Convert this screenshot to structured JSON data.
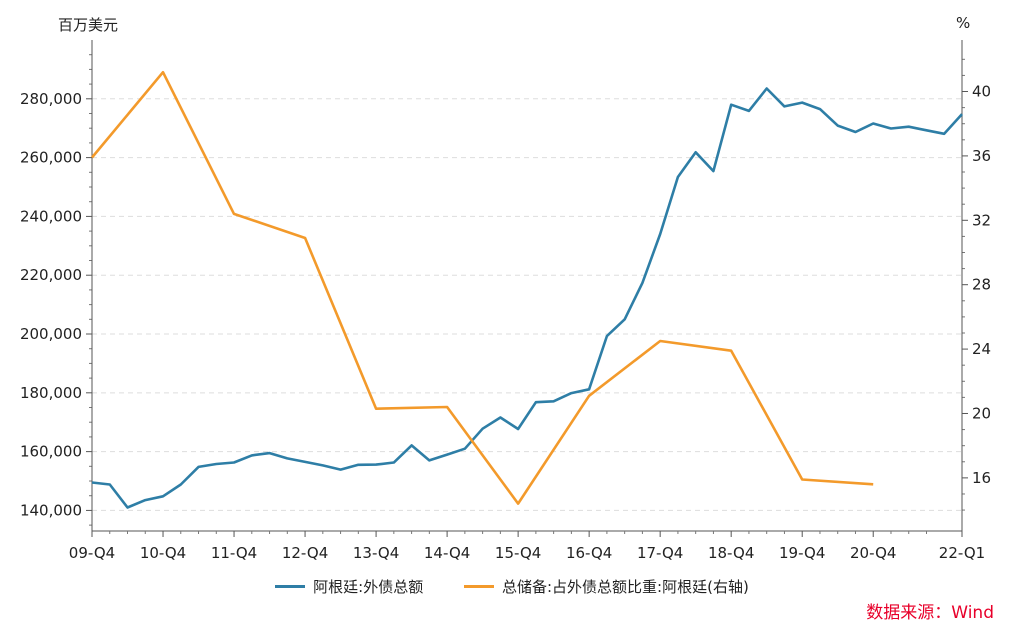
{
  "chart_data": {
    "type": "line",
    "y_left_unit": "百万美元",
    "y_right_unit": "%",
    "x_ticks": [
      "09-Q4",
      "10-Q4",
      "11-Q4",
      "12-Q4",
      "13-Q4",
      "14-Q4",
      "15-Q4",
      "16-Q4",
      "17-Q4",
      "18-Q4",
      "19-Q4",
      "20-Q4",
      "22-Q1"
    ],
    "y_left_ticks": [
      140000,
      160000,
      180000,
      200000,
      220000,
      240000,
      260000,
      280000
    ],
    "y_left_tick_labels": [
      "140,000",
      "160,000",
      "180,000",
      "200,000",
      "220,000",
      "240,000",
      "260,000",
      "280,000"
    ],
    "y_right_ticks": [
      16,
      20,
      24,
      28,
      32,
      36,
      40
    ],
    "y_left_lim": [
      133000,
      300000
    ],
    "y_right_lim": [
      12.7,
      43.2
    ],
    "x_lim": [
      0,
      49
    ],
    "grid": true,
    "legend_position": "bottom-center",
    "series": [
      {
        "name": "阿根廷:外债总额",
        "color": "#2e7ea6",
        "axis": "left",
        "x": [
          0,
          1,
          2,
          3,
          4,
          5,
          6,
          7,
          8,
          9,
          10,
          11,
          12,
          13,
          14,
          15,
          16,
          17,
          18,
          19,
          20,
          21,
          22,
          23,
          24,
          25,
          26,
          27,
          28,
          29,
          30,
          31,
          32,
          33,
          34,
          35,
          36,
          37,
          38,
          39,
          40,
          41,
          42,
          43,
          44,
          45,
          46,
          47,
          48,
          49
        ],
        "values": [
          149500,
          148800,
          141000,
          143500,
          144800,
          148800,
          154800,
          155800,
          156300,
          158700,
          159500,
          157700,
          156500,
          155300,
          153900,
          155500,
          155600,
          156300,
          162100,
          157000,
          159000,
          161000,
          167800,
          171600,
          167700,
          176800,
          177100,
          179900,
          181200,
          199300,
          205000,
          217400,
          234000,
          253400,
          261800,
          255400,
          278000,
          275900,
          283500,
          277400,
          278700,
          276500,
          270900,
          268700,
          271600,
          269900,
          270500,
          269300,
          268100,
          274800
        ]
      },
      {
        "name": "总储备:占外债总额比重:阿根廷(右轴)",
        "color": "#f39a2b",
        "axis": "right",
        "x": [
          0,
          4,
          8,
          12,
          16,
          20,
          24,
          28,
          32,
          36,
          40,
          44
        ],
        "values": [
          35.9,
          41.2,
          32.4,
          30.9,
          20.3,
          20.4,
          14.4,
          21.1,
          24.5,
          23.9,
          15.9,
          15.6
        ]
      }
    ]
  },
  "source_text": "数据来源：Wind"
}
